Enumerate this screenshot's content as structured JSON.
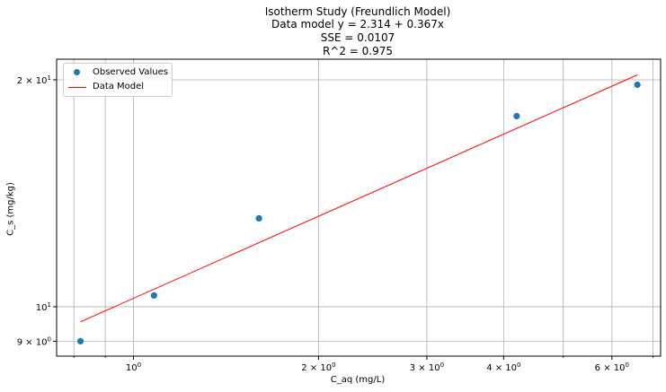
{
  "chart_data": {
    "type": "scatter",
    "title_lines": [
      "Isotherm Study (Freundlich Model)",
      "Data model y = 2.314 + 0.367x",
      "SSE = 0.0107",
      "R^2 = 0.975"
    ],
    "xlabel": "C_aq (mg/L)",
    "ylabel": "C_s  (mg/kg)",
    "x_scale": "log",
    "y_scale": "log",
    "xlim": [
      0.75,
      7.2
    ],
    "ylim": [
      8.6,
      21.3
    ],
    "grid": true,
    "legend_position": "top-left",
    "x_ticks": [
      {
        "value": 1,
        "base": "10",
        "exp": "0"
      },
      {
        "value": 2,
        "base": "2 × 10",
        "exp": "0"
      },
      {
        "value": 3,
        "base": "3 × 10",
        "exp": "0"
      },
      {
        "value": 4,
        "base": "4 × 10",
        "exp": "0"
      },
      {
        "value": 6,
        "base": "6 × 10",
        "exp": "0"
      }
    ],
    "x_minor_grid": [
      0.8,
      0.9,
      5,
      7
    ],
    "y_ticks": [
      {
        "value": 9,
        "base": "9 × 10",
        "exp": "0"
      },
      {
        "value": 10,
        "base": "10",
        "exp": "1"
      },
      {
        "value": 20,
        "base": "2 × 10",
        "exp": "1"
      }
    ],
    "series": [
      {
        "name": "Observed Values",
        "kind": "scatter",
        "color": "#1f77b4",
        "x": [
          0.82,
          1.08,
          1.6,
          4.2,
          6.6
        ],
        "y": [
          9.0,
          10.35,
          13.1,
          17.9,
          19.7
        ]
      },
      {
        "name": "Data Model",
        "kind": "line",
        "color": "#ff0000",
        "x": [
          0.82,
          6.6
        ],
        "y": [
          9.55,
          20.3
        ]
      }
    ]
  }
}
